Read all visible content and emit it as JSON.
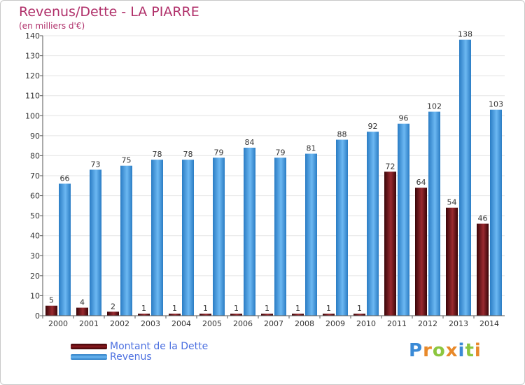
{
  "header": {
    "title": "Revenus/Dette - LA PIARRE",
    "subtitle": "(en milliers d'€)"
  },
  "chart_data": {
    "type": "bar",
    "categories": [
      "2000",
      "2001",
      "2002",
      "2003",
      "2004",
      "2005",
      "2006",
      "2007",
      "2008",
      "2009",
      "2010",
      "2011",
      "2012",
      "2013",
      "2014"
    ],
    "series": [
      {
        "name": "Montant de la Dette",
        "color": "#6b0f14",
        "values": [
          5,
          4,
          2,
          1,
          1,
          1,
          1,
          1,
          1,
          1,
          1,
          72,
          64,
          54,
          46
        ]
      },
      {
        "name": "Revenus",
        "color": "#4a9fe0",
        "values": [
          66,
          73,
          75,
          78,
          78,
          79,
          84,
          79,
          81,
          88,
          92,
          96,
          102,
          138,
          103
        ]
      }
    ],
    "yticks": [
      0,
      10,
      20,
      30,
      40,
      50,
      60,
      70,
      80,
      90,
      100,
      110,
      120,
      130,
      140
    ],
    "ylim": [
      0,
      140
    ],
    "grid": true,
    "legend_position": "bottom-left"
  },
  "legend": {
    "items": [
      {
        "label": "Montant de la Dette",
        "color": "#6b0f14"
      },
      {
        "label": "Revenus",
        "color": "#4a9fe0"
      }
    ]
  },
  "logo": {
    "letters": [
      "P",
      "r",
      "o",
      "x",
      "i",
      "t",
      "i"
    ],
    "colors": [
      "#3a8ad6",
      "#e8892a",
      "#8cc63f",
      "#e8892a",
      "#3a8ad6",
      "#8cc63f",
      "#e8892a"
    ]
  }
}
